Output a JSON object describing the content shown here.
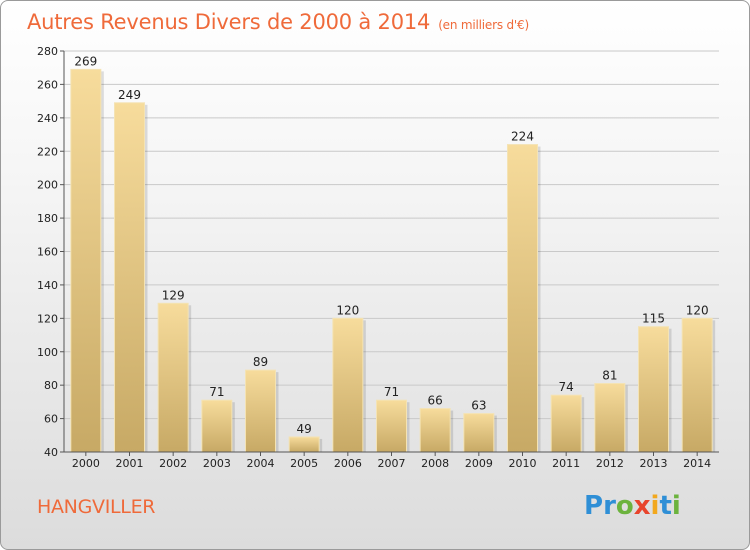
{
  "chart_data": {
    "type": "bar",
    "title": "Autres Revenus Divers de 2000 à 2014",
    "subtitle": "(en milliers d'€)",
    "categories": [
      "2000",
      "2001",
      "2002",
      "2003",
      "2004",
      "2005",
      "2006",
      "2007",
      "2008",
      "2009",
      "2010",
      "2011",
      "2012",
      "2013",
      "2014"
    ],
    "values": [
      269,
      249,
      129,
      71,
      89,
      49,
      120,
      71,
      66,
      63,
      224,
      74,
      81,
      115,
      120
    ],
    "ylim": [
      40,
      280
    ],
    "yticks": [
      40,
      60,
      80,
      100,
      120,
      140,
      160,
      180,
      200,
      220,
      240,
      260,
      280
    ],
    "grid": true,
    "legend": "none",
    "bar_color_top": "#f7dc9c",
    "bar_color_bottom": "#c7a965",
    "title_color": "#ef6a3a"
  },
  "place_name": "HANGVILLER",
  "logo": {
    "letters": [
      {
        "char": "P",
        "color": "#2f8fd6"
      },
      {
        "char": "r",
        "color": "#2f8fd6"
      },
      {
        "char": "o",
        "color": "#6cb33e"
      },
      {
        "char": "x",
        "color": "#e8442c"
      },
      {
        "char": "i",
        "color": "#f2a81d"
      },
      {
        "char": "t",
        "color": "#2f8fd6"
      },
      {
        "char": "i",
        "color": "#6cb33e"
      }
    ]
  }
}
